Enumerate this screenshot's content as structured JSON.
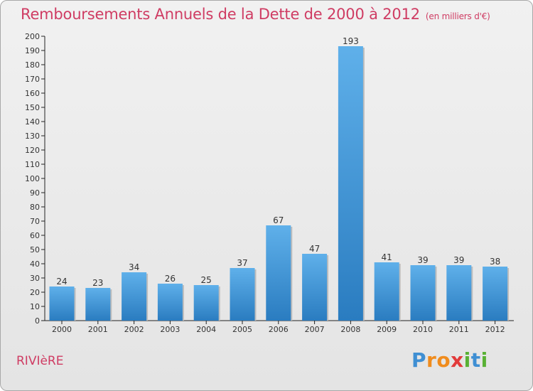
{
  "header": {
    "title": "Remboursements Annuels de la Dette de 2000 à 2012",
    "subtitle": "(en milliers d'€)"
  },
  "footer": {
    "commune": "RIVIèRE",
    "logo_text": "Proxiti"
  },
  "colors": {
    "title": "#cf3c63",
    "bar_top": "#5fb0ea",
    "bar_bottom": "#2a7cc0",
    "logo_p": "#3f8fd3",
    "logo_r": "#f08c1d",
    "logo_x": "#e23b3b",
    "logo_i": "#59b134"
  },
  "chart_data": {
    "type": "bar",
    "title": "Remboursements Annuels de la Dette de 2000 à 2012",
    "subtitle": "(en milliers d'€)",
    "xlabel": "",
    "ylabel": "",
    "categories": [
      "2000",
      "2001",
      "2002",
      "2003",
      "2004",
      "2005",
      "2006",
      "2007",
      "2008",
      "2009",
      "2010",
      "2011",
      "2012"
    ],
    "values": [
      24,
      23,
      34,
      26,
      25,
      37,
      67,
      47,
      193,
      41,
      39,
      39,
      38
    ],
    "ylim": [
      0,
      200
    ],
    "ytick_step": 10,
    "grid": false,
    "data_labels": true
  }
}
